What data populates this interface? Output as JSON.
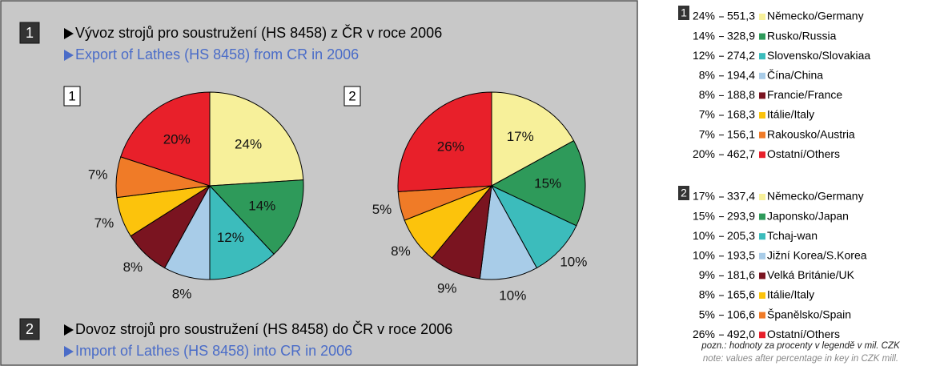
{
  "notes": [
    "pozn.: hodnoty za procenty v legendě v mil. CZK",
    "note: values after percentage in key in CZK mill."
  ],
  "chart_data": [
    {
      "type": "pie",
      "number": "1",
      "title": "Vývoz strojů pro soustružení (HS 8458) z ČR v roce 2006",
      "subtitle": "Export of Lathes (HS 8458) from CR in 2006",
      "categories": [
        "Německo/Germany",
        "Rusko/Russia",
        "Slovensko/Slovakiaa",
        "Čína/China",
        "Francie/France",
        "Itálie/Italy",
        "Rakousko/Austria",
        "Ostatní/Others"
      ],
      "values": [
        24,
        14,
        12,
        8,
        8,
        7,
        7,
        20
      ],
      "value_labels": [
        "24%",
        "14%",
        "12%",
        "8%",
        "8%",
        "7%",
        "7%",
        "20%"
      ],
      "amounts": [
        551.3,
        328.9,
        274.2,
        194.4,
        188.8,
        168.3,
        156.1,
        462.7
      ],
      "amount_labels": [
        "551,3",
        "328,9",
        "274,2",
        "194,4",
        "188,8",
        "168,3",
        "156,1",
        "462,7"
      ],
      "colors": [
        "#f7f09a",
        "#2e9a5a",
        "#3cbcbc",
        "#a8cce8",
        "#7a1420",
        "#fcc30c",
        "#f07b27",
        "#e8202a"
      ]
    },
    {
      "type": "pie",
      "number": "2",
      "title": "Dovoz strojů pro soustružení (HS 8458) do ČR v roce 2006",
      "subtitle": "Import of Lathes (HS 8458) into CR in 2006",
      "categories": [
        "Německo/Germany",
        "Japonsko/Japan",
        "Tchaj-wan",
        "Jižní Korea/S.Korea",
        "Velká Británie/UK",
        "Itálie/Italy",
        "Španělsko/Spain",
        "Ostatní/Others"
      ],
      "values": [
        17,
        15,
        10,
        10,
        9,
        8,
        5,
        26
      ],
      "value_labels": [
        "17%",
        "15%",
        "10%",
        "10%",
        "9%",
        "8%",
        "5%",
        "26%"
      ],
      "amounts": [
        337.4,
        293.9,
        205.3,
        193.5,
        181.6,
        165.6,
        106.6,
        492.0
      ],
      "amount_labels": [
        "337,4",
        "293,9",
        "205,3",
        "193,5",
        "181,6",
        "165,6",
        "106,6",
        "492,0"
      ],
      "colors": [
        "#f7f09a",
        "#2e9a5a",
        "#3cbcbc",
        "#a8cce8",
        "#7a1420",
        "#fcc30c",
        "#f07b27",
        "#e8202a"
      ]
    }
  ]
}
